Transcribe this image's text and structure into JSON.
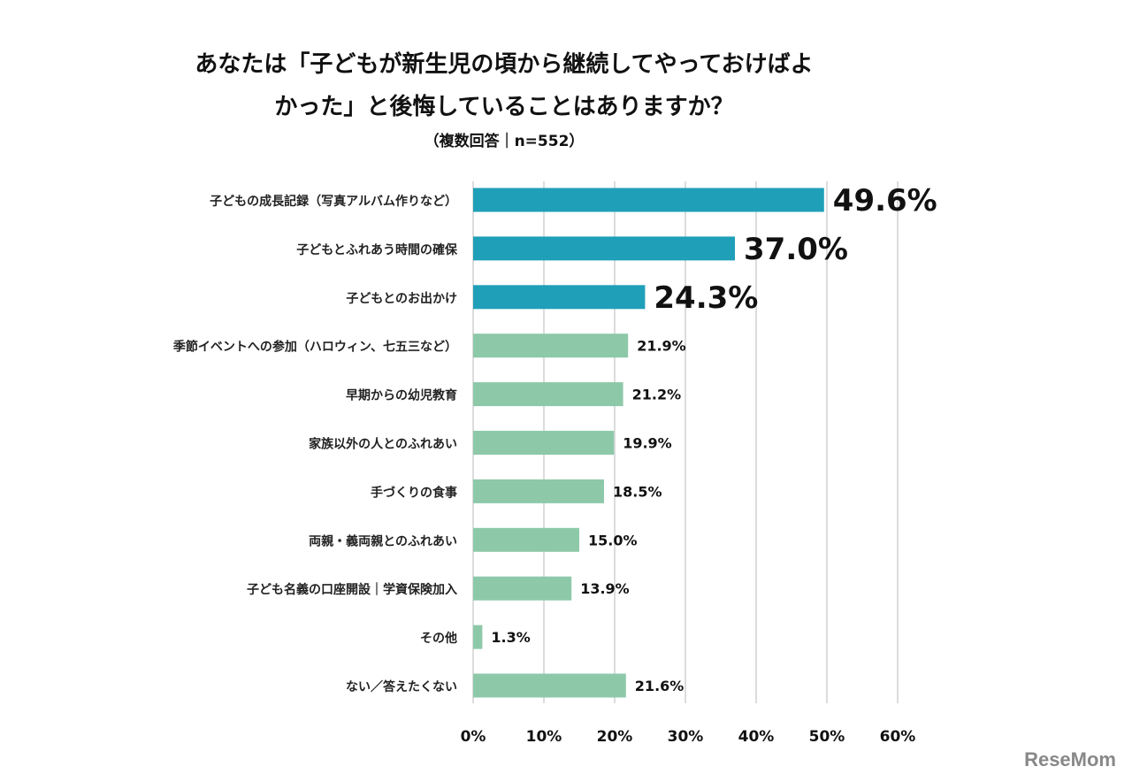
{
  "chart_data": {
    "type": "bar",
    "orientation": "horizontal",
    "title_lines": [
      "あなたは「子どもが新生児の頃から継続してやっておけばよ",
      "かった」と後悔していることはありますか？"
    ],
    "subtitle": "（複数回答｜n=552）",
    "categories": [
      "子どもの成長記録（写真アルバム作りなど）",
      "子どもとふれあう時間の確保",
      "子どもとのお出かけ",
      "季節イベントへの参加（ハロウィン、七五三など）",
      "早期からの幼児教育",
      "家族以外の人とのふれあい",
      "手づくりの食事",
      "両親・義両親とのふれあい",
      "子ども名義の口座開設｜学資保険加入",
      "その他",
      "ない／答えたくない"
    ],
    "values": [
      49.6,
      37.0,
      24.3,
      21.9,
      21.2,
      19.9,
      18.5,
      15.0,
      13.9,
      1.3,
      21.6
    ],
    "data_labels": [
      "49.6%",
      "37.0%",
      "24.3%",
      "21.9%",
      "21.2%",
      "19.9%",
      "18.5%",
      "15.0%",
      "13.9%",
      "1.3%",
      "21.6%"
    ],
    "highlight_top_n": 3,
    "colors": {
      "highlight": "#1f9fb8",
      "normal": "#8dc9a9",
      "grid": "#d0d0d0"
    },
    "xlim": [
      0,
      60
    ],
    "xticks": [
      "0%",
      "10%",
      "20%",
      "30%",
      "40%",
      "50%",
      "60%"
    ],
    "grid": true
  },
  "logo": "ReseMom"
}
